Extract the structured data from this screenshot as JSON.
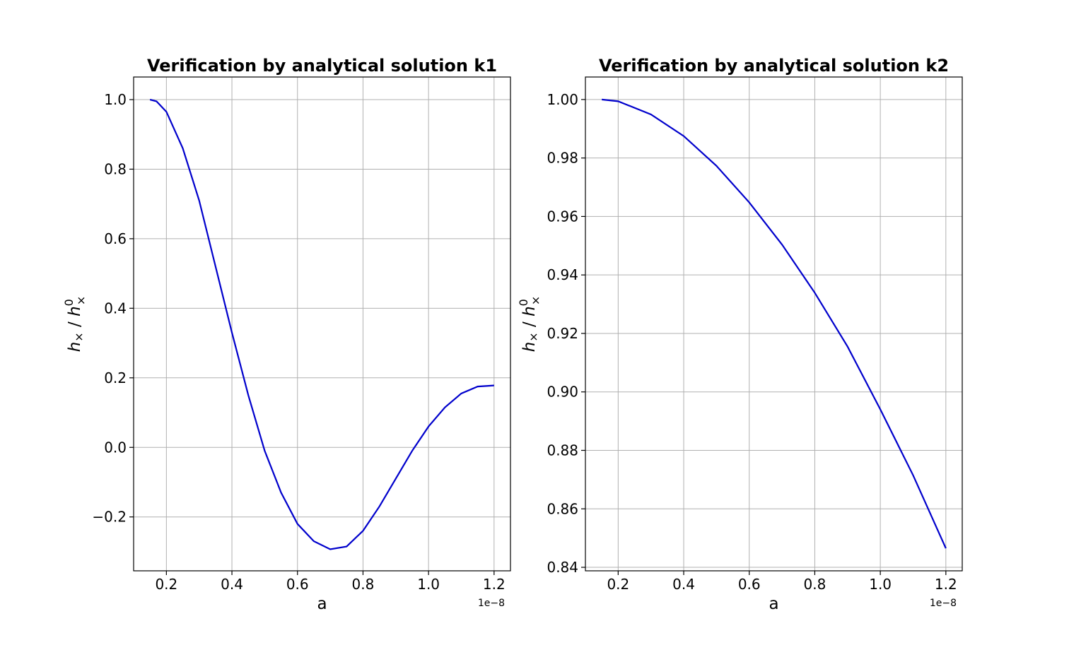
{
  "chart_data": [
    {
      "type": "line",
      "title": "Verification by analytical solution k1",
      "xlabel": "a",
      "ylabel_main": "h",
      "ylabel_sub": "×",
      "ylabel_sep": " / ",
      "ylabel_sup": "0",
      "x_offset_text": "1e−8",
      "xlim": [
        0.1,
        1.25
      ],
      "ylim": [
        -0.355,
        1.065
      ],
      "xticks": [
        0.2,
        0.4,
        0.6,
        0.8,
        1.0,
        1.2
      ],
      "xtick_labels": [
        "0.2",
        "0.4",
        "0.6",
        "0.8",
        "1.0",
        "1.2"
      ],
      "yticks": [
        -0.2,
        0.0,
        0.2,
        0.4,
        0.6,
        0.8,
        1.0
      ],
      "ytick_labels": [
        "−0.2",
        "0.0",
        "0.2",
        "0.4",
        "0.6",
        "0.8",
        "1.0"
      ],
      "grid": true,
      "color": "#0000cc",
      "series": [
        {
          "x": [
            0.15,
            0.17,
            0.2,
            0.25,
            0.3,
            0.35,
            0.4,
            0.45,
            0.5,
            0.55,
            0.6,
            0.65,
            0.7,
            0.75,
            0.8,
            0.85,
            0.9,
            0.95,
            1.0,
            1.05,
            1.1,
            1.15,
            1.2
          ],
          "y": [
            1.0,
            0.995,
            0.965,
            0.86,
            0.71,
            0.52,
            0.33,
            0.15,
            -0.01,
            -0.13,
            -0.22,
            -0.27,
            -0.293,
            -0.285,
            -0.24,
            -0.17,
            -0.09,
            -0.01,
            0.06,
            0.115,
            0.155,
            0.175,
            0.178
          ]
        }
      ]
    },
    {
      "type": "line",
      "title": "Verification by analytical solution k2",
      "xlabel": "a",
      "ylabel_main": "h",
      "ylabel_sub": "×",
      "ylabel_sep": " / ",
      "ylabel_sup": "0",
      "x_offset_text": "1e−8",
      "xlim": [
        0.1,
        1.25
      ],
      "ylim": [
        0.8388,
        1.0077
      ],
      "xticks": [
        0.2,
        0.4,
        0.6,
        0.8,
        1.0,
        1.2
      ],
      "xtick_labels": [
        "0.2",
        "0.4",
        "0.6",
        "0.8",
        "1.0",
        "1.2"
      ],
      "yticks": [
        0.84,
        0.86,
        0.88,
        0.9,
        0.92,
        0.94,
        0.96,
        0.98,
        1.0
      ],
      "ytick_labels": [
        "0.84",
        "0.86",
        "0.88",
        "0.90",
        "0.92",
        "0.94",
        "0.96",
        "0.98",
        "1.00"
      ],
      "grid": true,
      "color": "#0000cc",
      "series": [
        {
          "x": [
            0.15,
            0.2,
            0.3,
            0.4,
            0.5,
            0.6,
            0.7,
            0.8,
            0.9,
            1.0,
            1.1,
            1.2
          ],
          "y": [
            1.0,
            0.9994,
            0.9949,
            0.9875,
            0.9773,
            0.9648,
            0.9504,
            0.9339,
            0.9155,
            0.894,
            0.8715,
            0.8465
          ]
        }
      ]
    }
  ]
}
